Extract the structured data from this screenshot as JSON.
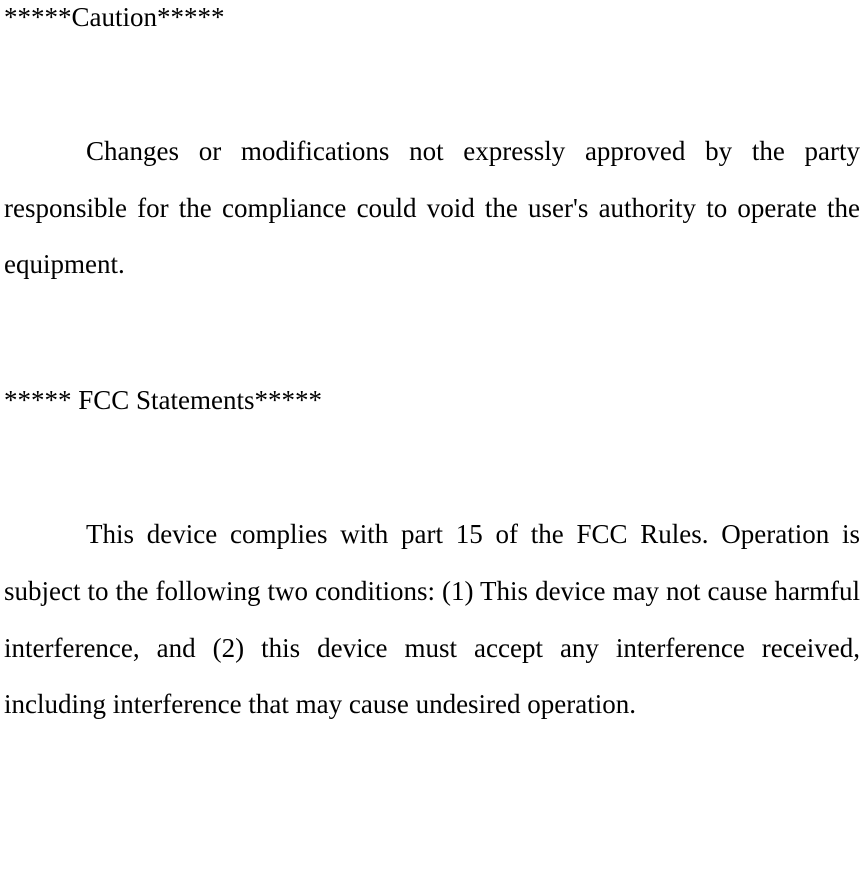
{
  "document": {
    "section1": {
      "header": "*****Caution*****",
      "paragraph": "Changes or modifications not expressly approved by the party responsible for the compliance could void the user's authority to operate the equipment."
    },
    "section2": {
      "header": "***** FCC Statements*****",
      "paragraph": "This device complies with part 15 of the FCC Rules. Operation is subject to the following two conditions: (1) This device may not cause harmful interference, and (2) this device must accept any interference received, including interference that may cause undesired operation."
    },
    "styling": {
      "background_color": "#ffffff",
      "text_color": "#000000",
      "font_family": "Times New Roman",
      "font_size": 27,
      "line_height_header": 1.3,
      "line_height_body": 2.1,
      "text_indent": 82,
      "text_align": "justify"
    }
  }
}
